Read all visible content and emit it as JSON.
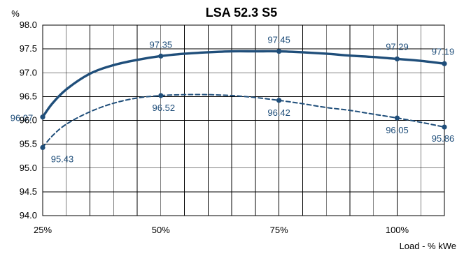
{
  "chart_data": {
    "type": "line",
    "title": "LSA 52.3 S5",
    "ylabel": "%",
    "xlabel": "Load - % kWe",
    "xlim": [
      25,
      110
    ],
    "ylim": [
      94.0,
      98.0
    ],
    "grid": true,
    "x_ticks": [
      {
        "value": 25,
        "label": "25%"
      },
      {
        "value": 50,
        "label": "50%"
      },
      {
        "value": 75,
        "label": "75%"
      },
      {
        "value": 100,
        "label": "100%"
      }
    ],
    "y_ticks": [
      {
        "value": 94.0,
        "label": "94.0"
      },
      {
        "value": 94.5,
        "label": "94.5"
      },
      {
        "value": 95.0,
        "label": "95.0"
      },
      {
        "value": 95.5,
        "label": "95.5"
      },
      {
        "value": 96.0,
        "label": "96.0"
      },
      {
        "value": 96.5,
        "label": "96.5"
      },
      {
        "value": 97.0,
        "label": "97.0"
      },
      {
        "value": 97.5,
        "label": "97.5"
      },
      {
        "value": 98.0,
        "label": "98.0"
      }
    ],
    "series": [
      {
        "style": "solid",
        "color": "#1f4e7a",
        "x": [
          25,
          50,
          75,
          100,
          110
        ],
        "values": [
          96.07,
          97.35,
          97.45,
          97.29,
          97.19
        ],
        "labels": [
          "96.07",
          "97.35",
          "97.45",
          "97.29",
          "97.19"
        ],
        "curve": [
          [
            25,
            96.07
          ],
          [
            27,
            96.35
          ],
          [
            30,
            96.65
          ],
          [
            35,
            96.98
          ],
          [
            40,
            97.16
          ],
          [
            45,
            97.27
          ],
          [
            50,
            97.35
          ],
          [
            55,
            97.4
          ],
          [
            60,
            97.43
          ],
          [
            65,
            97.45
          ],
          [
            70,
            97.45
          ],
          [
            75,
            97.45
          ],
          [
            80,
            97.43
          ],
          [
            85,
            97.4
          ],
          [
            90,
            97.36
          ],
          [
            95,
            97.33
          ],
          [
            100,
            97.29
          ],
          [
            105,
            97.25
          ],
          [
            110,
            97.19
          ]
        ]
      },
      {
        "style": "dashed",
        "color": "#1f4e7a",
        "x": [
          25,
          50,
          75,
          100,
          110
        ],
        "values": [
          95.43,
          96.52,
          96.42,
          96.05,
          95.86
        ],
        "labels": [
          "95.43",
          "96.52",
          "96.42",
          "96.05",
          "95.86"
        ],
        "curve": [
          [
            25,
            95.43
          ],
          [
            27,
            95.67
          ],
          [
            30,
            95.92
          ],
          [
            35,
            96.18
          ],
          [
            40,
            96.36
          ],
          [
            45,
            96.47
          ],
          [
            50,
            96.52
          ],
          [
            55,
            96.54
          ],
          [
            60,
            96.54
          ],
          [
            65,
            96.52
          ],
          [
            70,
            96.48
          ],
          [
            75,
            96.42
          ],
          [
            80,
            96.35
          ],
          [
            85,
            96.27
          ],
          [
            90,
            96.21
          ],
          [
            95,
            96.13
          ],
          [
            100,
            96.05
          ],
          [
            105,
            95.96
          ],
          [
            110,
            95.86
          ]
        ]
      }
    ]
  }
}
